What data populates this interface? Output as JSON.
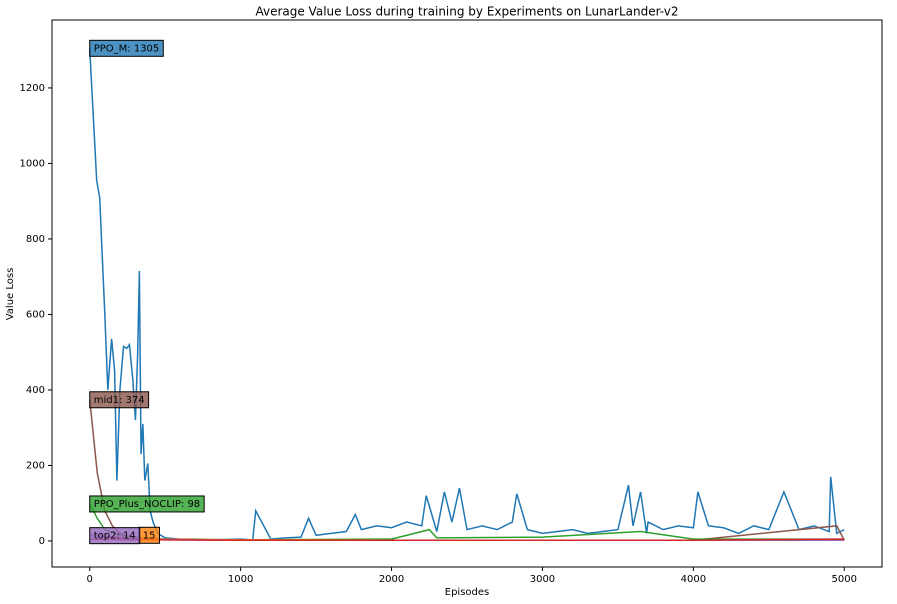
{
  "chart_data": {
    "type": "line",
    "title": "Average Value Loss during training by Experiments on LunarLander-v2",
    "x_label": "Episodes",
    "y_label": "Value Loss",
    "xlim": [
      -250,
      5250
    ],
    "ylim": [
      -69,
      1380
    ],
    "xticks": [
      0,
      1000,
      2000,
      3000,
      4000,
      5000
    ],
    "yticks": [
      0,
      200,
      400,
      600,
      800,
      1000,
      1200
    ],
    "series": [
      {
        "color": "#1f77b4",
        "annotation": "PPO_M: 1305",
        "x": [
          0,
          46,
          66,
          100,
          120,
          145,
          165,
          180,
          200,
          224,
          245,
          263,
          285,
          303,
          318,
          329,
          340,
          352,
          365,
          385,
          400,
          420,
          450,
          500,
          600,
          700,
          800,
          900,
          1000,
          1080,
          1100,
          1200,
          1300,
          1400,
          1450,
          1500,
          1600,
          1700,
          1760,
          1800,
          1900,
          2000,
          2100,
          2200,
          2230,
          2300,
          2350,
          2400,
          2450,
          2500,
          2600,
          2700,
          2800,
          2830,
          2900,
          3000,
          3100,
          3200,
          3300,
          3400,
          3500,
          3570,
          3600,
          3650,
          3690,
          3700,
          3800,
          3900,
          4000,
          4030,
          4100,
          4200,
          4300,
          4400,
          4500,
          4600,
          4700,
          4800,
          4900,
          4910,
          4950,
          5000
        ],
        "values": [
          1305,
          955,
          910,
          600,
          400,
          535,
          450,
          160,
          400,
          515,
          510,
          520,
          430,
          320,
          500,
          715,
          230,
          310,
          160,
          205,
          80,
          50,
          20,
          8,
          5,
          5,
          3,
          4,
          5,
          3,
          80,
          5,
          8,
          10,
          60,
          15,
          20,
          25,
          70,
          30,
          40,
          35,
          50,
          40,
          120,
          25,
          130,
          50,
          140,
          30,
          40,
          30,
          50,
          125,
          30,
          20,
          25,
          30,
          20,
          25,
          30,
          148,
          40,
          130,
          20,
          50,
          30,
          40,
          35,
          130,
          40,
          35,
          20,
          40,
          30,
          130,
          30,
          40,
          25,
          170,
          20,
          30
        ]
      },
      {
        "color": "#8c564b",
        "annotation": "mid1: 374",
        "x": [
          0,
          50,
          100,
          150,
          200,
          300,
          400,
          600,
          1000,
          2000,
          3000,
          4000,
          4950,
          5000
        ],
        "values": [
          374,
          180,
          80,
          40,
          20,
          8,
          5,
          3,
          2,
          2,
          2,
          2,
          40,
          2
        ]
      },
      {
        "color": "#2ca02c",
        "annotation": "PPO_Plus_NOCLIP: 98",
        "x": [
          0,
          50,
          100,
          200,
          300,
          500,
          1000,
          2000,
          2250,
          2300,
          3000,
          3650,
          4000,
          5000
        ],
        "values": [
          98,
          60,
          30,
          15,
          10,
          5,
          3,
          5,
          30,
          8,
          10,
          25,
          5,
          5
        ]
      },
      {
        "color": "#ff7f0e",
        "annotation": "15",
        "x": [
          0,
          200,
          500,
          1000,
          2000,
          3000,
          4000,
          5000
        ],
        "values": [
          15,
          10,
          5,
          3,
          2,
          2,
          2,
          2
        ]
      },
      {
        "color": "#9467bd",
        "annotation": "top2: 14",
        "x": [
          0,
          200,
          500,
          1000,
          2000,
          3000,
          4000,
          5000
        ],
        "values": [
          14,
          8,
          4,
          2,
          2,
          2,
          2,
          2
        ]
      },
      {
        "color": "#d62728",
        "x": [
          0,
          200,
          500,
          1000,
          2000,
          3000,
          4000,
          5000
        ],
        "values": [
          5,
          4,
          3,
          2,
          2,
          2,
          2,
          5
        ]
      }
    ]
  }
}
